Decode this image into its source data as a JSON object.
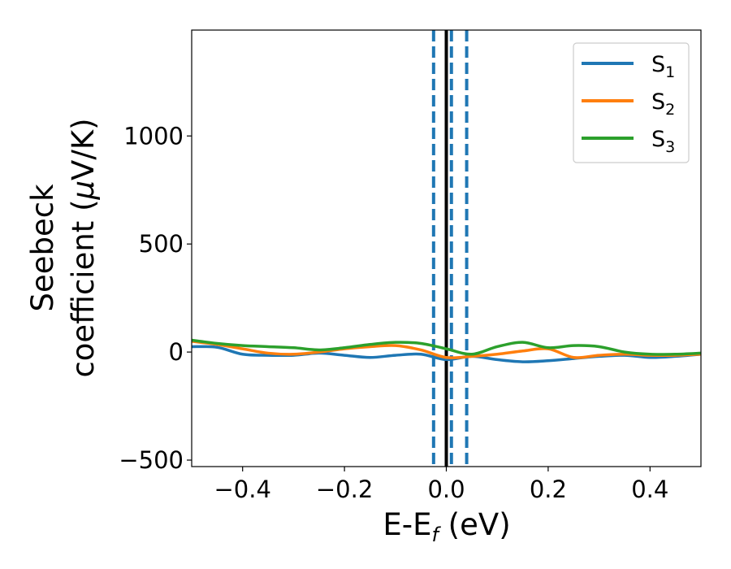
{
  "chart_data": {
    "type": "line",
    "title": "",
    "xlabel": {
      "main": "E-E",
      "sub": "f",
      "unit": " (eV)"
    },
    "ylabel": {
      "line1": "Seebeck",
      "line2_prefix": "coefficient  (",
      "mu": "μ",
      "line2_suffix": "V/K)"
    },
    "xlim": [
      -0.5,
      0.5
    ],
    "ylim": [
      -530,
      1490
    ],
    "xticks": [
      -0.4,
      -0.2,
      0.0,
      0.2,
      0.4
    ],
    "xtick_labels": [
      "−0.4",
      "−0.2",
      "0.0",
      "0.2",
      "0.4"
    ],
    "yticks": [
      -500,
      0,
      500,
      1000
    ],
    "ytick_labels": [
      "−500",
      "0",
      "500",
      "1000"
    ],
    "grid": false,
    "legend_placement": "top-right",
    "fermi_line_x": 0.0,
    "dashed_lines_x": [
      -0.025,
      0.01,
      0.04
    ],
    "series": [
      {
        "name": "S1",
        "label_main": "S",
        "label_sub": "1",
        "color": "#1f77b4",
        "x": [
          -0.5,
          -0.45,
          -0.4,
          -0.35,
          -0.3,
          -0.25,
          -0.2,
          -0.15,
          -0.1,
          -0.05,
          0.0,
          0.05,
          0.1,
          0.15,
          0.2,
          0.25,
          0.3,
          0.35,
          0.4,
          0.45,
          0.5
        ],
        "y": [
          25,
          22,
          -10,
          -15,
          -15,
          -5,
          -15,
          -25,
          -15,
          -10,
          -35,
          -20,
          -35,
          -45,
          -40,
          -30,
          -20,
          -15,
          -25,
          -20,
          -10
        ]
      },
      {
        "name": "S2",
        "label_main": "S",
        "label_sub": "2",
        "color": "#ff7f0e",
        "x": [
          -0.5,
          -0.45,
          -0.4,
          -0.35,
          -0.3,
          -0.25,
          -0.2,
          -0.15,
          -0.1,
          -0.05,
          0.0,
          0.05,
          0.1,
          0.15,
          0.2,
          0.25,
          0.3,
          0.35,
          0.4,
          0.45,
          0.5
        ],
        "y": [
          50,
          35,
          15,
          -5,
          -10,
          0,
          15,
          25,
          30,
          10,
          -25,
          -20,
          -10,
          5,
          15,
          -25,
          -15,
          -10,
          -15,
          -15,
          -10
        ]
      },
      {
        "name": "S3",
        "label_main": "S",
        "label_sub": "3",
        "color": "#2ca02c",
        "x": [
          -0.5,
          -0.45,
          -0.4,
          -0.35,
          -0.3,
          -0.25,
          -0.2,
          -0.15,
          -0.1,
          -0.05,
          0.0,
          0.05,
          0.1,
          0.15,
          0.2,
          0.25,
          0.3,
          0.35,
          0.4,
          0.45,
          0.5
        ],
        "y": [
          55,
          40,
          30,
          25,
          20,
          10,
          20,
          35,
          45,
          40,
          15,
          -10,
          25,
          45,
          20,
          30,
          25,
          0,
          -10,
          -10,
          -5
        ]
      }
    ]
  }
}
